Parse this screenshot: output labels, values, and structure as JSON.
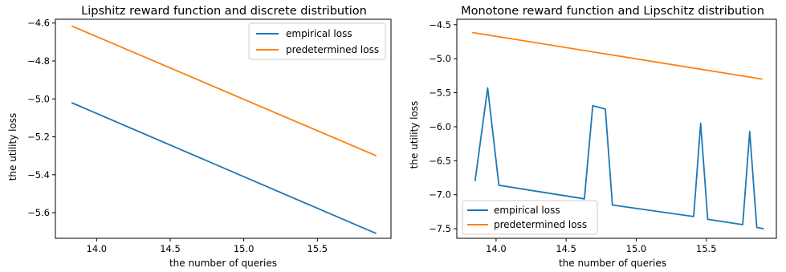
{
  "chart_data": [
    {
      "type": "line",
      "title": "Lipshitz reward function and discrete distribution",
      "xlabel": "the number of queries",
      "ylabel": "the utility loss",
      "xlim": [
        13.72,
        16.0
      ],
      "ylim": [
        -5.735,
        -4.58
      ],
      "xticks": [
        14.0,
        14.5,
        15.0,
        15.5
      ],
      "xtick_labels": [
        "14.0",
        "14.5",
        "15.0",
        "15.5"
      ],
      "yticks": [
        -5.6,
        -5.4,
        -5.2,
        -5.0,
        -4.8,
        -4.6
      ],
      "ytick_labels": [
        "−5.6",
        "−5.4",
        "−5.2",
        "−5.0",
        "−4.8",
        "−4.6"
      ],
      "legend": "top-right",
      "grid": false,
      "series": [
        {
          "name": "empirical loss",
          "color": "#1f77b4",
          "x": [
            13.83,
            15.9
          ],
          "y": [
            -5.02,
            -5.71
          ]
        },
        {
          "name": "predetermined loss",
          "color": "#ff7f0e",
          "x": [
            13.83,
            15.9
          ],
          "y": [
            -4.615,
            -5.3
          ]
        }
      ]
    },
    {
      "type": "line",
      "title": "Monotone reward function and Lipschitz distribution",
      "xlabel": "the number of queries",
      "ylabel": "the utility loss",
      "xlim": [
        13.72,
        16.0
      ],
      "ylim": [
        -7.64,
        -4.42
      ],
      "xticks": [
        14.0,
        14.5,
        15.0,
        15.5
      ],
      "xtick_labels": [
        "14.0",
        "14.5",
        "15.0",
        "15.5"
      ],
      "yticks": [
        -7.5,
        -7.0,
        -6.5,
        -6.0,
        -5.5,
        -5.0,
        -4.5
      ],
      "ytick_labels": [
        "−7.5",
        "−7.0",
        "−6.5",
        "−6.0",
        "−5.5",
        "−5.0",
        "−4.5"
      ],
      "legend": "bottom-left",
      "grid": false,
      "series": [
        {
          "name": "empirical loss",
          "color": "#1f77b4",
          "x": [
            13.85,
            13.94,
            14.02,
            14.63,
            14.69,
            14.78,
            14.83,
            15.41,
            15.46,
            15.51,
            15.76,
            15.81,
            15.86,
            15.91
          ],
          "y": [
            -6.8,
            -5.43,
            -6.86,
            -7.06,
            -5.69,
            -5.74,
            -7.15,
            -7.32,
            -5.95,
            -7.36,
            -7.44,
            -6.07,
            -7.48,
            -7.5
          ]
        },
        {
          "name": "predetermined loss",
          "color": "#ff7f0e",
          "x": [
            13.83,
            15.9
          ],
          "y": [
            -4.615,
            -5.3
          ]
        }
      ]
    }
  ]
}
